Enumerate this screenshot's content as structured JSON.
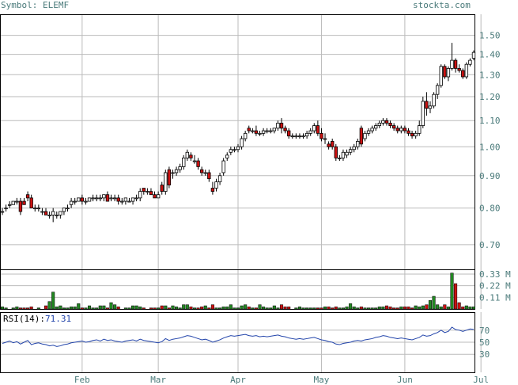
{
  "header": {
    "symbol_label": "Symbol: ELEMF",
    "site": "stockta.com"
  },
  "rsi": {
    "label_prefix": "RSI(14):",
    "value": "71.31",
    "levels": [
      70,
      50,
      30
    ]
  },
  "chart_data": {
    "type": "candlestick",
    "symbol": "ELEMF",
    "price_axis": {
      "scale": "log",
      "ticks": [
        0.7,
        0.8,
        0.9,
        1.0,
        1.1,
        1.2,
        1.3,
        1.4,
        1.5
      ],
      "range": [
        0.64,
        1.62
      ]
    },
    "volume_axis": {
      "ticks": [
        "0.11 M",
        "0.22 M",
        "0.33 M"
      ],
      "tick_values": [
        0.11,
        0.22,
        0.33
      ],
      "max": 0.36
    },
    "rsi_axis": {
      "ticks": [
        30,
        50,
        70
      ],
      "range": [
        0,
        100
      ]
    },
    "month_labels": [
      {
        "label": "Feb",
        "day": 22
      },
      {
        "label": "Mar",
        "day": 43
      },
      {
        "label": "Apr",
        "day": 65
      },
      {
        "label": "May",
        "day": 88
      },
      {
        "label": "Jun",
        "day": 111
      },
      {
        "label": "Jul",
        "day": 132
      }
    ],
    "colors": {
      "up_fill": "#ffffff",
      "down_fill": "#cc1111",
      "vol_up": "#228822",
      "vol_down": "#cc1111",
      "rsi_line": "#2244aa",
      "grid": "#bbbbbb"
    },
    "candles": [
      [
        0.79,
        0.8,
        0.78,
        0.79,
        0.02
      ],
      [
        0.8,
        0.81,
        0.79,
        0.8,
        0.01
      ],
      [
        0.81,
        0.82,
        0.8,
        0.81,
        0.0
      ],
      [
        0.81,
        0.82,
        0.81,
        0.82,
        0.01
      ],
      [
        0.82,
        0.83,
        0.81,
        0.82,
        0.02
      ],
      [
        0.82,
        0.83,
        0.78,
        0.79,
        0.01
      ],
      [
        0.82,
        0.83,
        0.81,
        0.81,
        0.01
      ],
      [
        0.84,
        0.85,
        0.82,
        0.83,
        0.01
      ],
      [
        0.83,
        0.84,
        0.8,
        0.8,
        0.02
      ],
      [
        0.8,
        0.81,
        0.79,
        0.8,
        0.0
      ],
      [
        0.8,
        0.81,
        0.79,
        0.8,
        0.01
      ],
      [
        0.79,
        0.8,
        0.78,
        0.79,
        0.0
      ],
      [
        0.79,
        0.8,
        0.78,
        0.78,
        0.03
      ],
      [
        0.78,
        0.79,
        0.77,
        0.78,
        0.07
      ],
      [
        0.78,
        0.8,
        0.76,
        0.79,
        0.16
      ],
      [
        0.78,
        0.79,
        0.77,
        0.78,
        0.02
      ],
      [
        0.78,
        0.79,
        0.77,
        0.79,
        0.03
      ],
      [
        0.79,
        0.8,
        0.78,
        0.8,
        0.01
      ],
      [
        0.8,
        0.81,
        0.79,
        0.8,
        0.01
      ],
      [
        0.81,
        0.83,
        0.8,
        0.82,
        0.02
      ],
      [
        0.82,
        0.83,
        0.81,
        0.82,
        0.02
      ],
      [
        0.82,
        0.83,
        0.82,
        0.83,
        0.05
      ],
      [
        0.83,
        0.84,
        0.81,
        0.82,
        0.01
      ],
      [
        0.82,
        0.83,
        0.81,
        0.82,
        0.01
      ],
      [
        0.82,
        0.83,
        0.82,
        0.83,
        0.03
      ],
      [
        0.83,
        0.84,
        0.82,
        0.83,
        0.01
      ],
      [
        0.83,
        0.84,
        0.82,
        0.83,
        0.01
      ],
      [
        0.83,
        0.84,
        0.82,
        0.83,
        0.03
      ],
      [
        0.83,
        0.84,
        0.82,
        0.84,
        0.03
      ],
      [
        0.84,
        0.85,
        0.82,
        0.82,
        0.01
      ],
      [
        0.83,
        0.84,
        0.82,
        0.83,
        0.06
      ],
      [
        0.83,
        0.84,
        0.82,
        0.83,
        0.04
      ],
      [
        0.83,
        0.84,
        0.81,
        0.82,
        0.02
      ],
      [
        0.82,
        0.83,
        0.81,
        0.82,
        0.0
      ],
      [
        0.82,
        0.83,
        0.81,
        0.83,
        0.01
      ],
      [
        0.82,
        0.83,
        0.82,
        0.82,
        0.01
      ],
      [
        0.82,
        0.83,
        0.81,
        0.83,
        0.03
      ],
      [
        0.83,
        0.84,
        0.82,
        0.83,
        0.03
      ],
      [
        0.83,
        0.86,
        0.82,
        0.85,
        0.02
      ],
      [
        0.86,
        0.86,
        0.84,
        0.85,
        0.01
      ],
      [
        0.85,
        0.86,
        0.84,
        0.85,
        0.0
      ],
      [
        0.85,
        0.86,
        0.84,
        0.84,
        0.01
      ],
      [
        0.84,
        0.85,
        0.83,
        0.83,
        0.01
      ],
      [
        0.83,
        0.85,
        0.83,
        0.84,
        0.01
      ],
      [
        0.87,
        0.88,
        0.84,
        0.85,
        0.03
      ],
      [
        0.85,
        0.92,
        0.84,
        0.91,
        0.03
      ],
      [
        0.92,
        0.93,
        0.86,
        0.87,
        0.01
      ],
      [
        0.91,
        0.92,
        0.89,
        0.91,
        0.03
      ],
      [
        0.91,
        0.93,
        0.9,
        0.92,
        0.02
      ],
      [
        0.92,
        0.94,
        0.91,
        0.93,
        0.01
      ],
      [
        0.93,
        0.97,
        0.92,
        0.96,
        0.04
      ],
      [
        0.96,
        0.99,
        0.95,
        0.98,
        0.04
      ],
      [
        0.97,
        0.98,
        0.95,
        0.96,
        0.02
      ],
      [
        0.95,
        0.97,
        0.94,
        0.95,
        0.01
      ],
      [
        0.95,
        0.96,
        0.92,
        0.93,
        0.01
      ],
      [
        0.92,
        0.93,
        0.9,
        0.91,
        0.02
      ],
      [
        0.91,
        0.92,
        0.9,
        0.91,
        0.03
      ],
      [
        0.91,
        0.92,
        0.88,
        0.89,
        0.01
      ],
      [
        0.86,
        0.88,
        0.84,
        0.85,
        0.04
      ],
      [
        0.86,
        0.89,
        0.85,
        0.88,
        0.01
      ],
      [
        0.88,
        0.91,
        0.87,
        0.9,
        0.01
      ],
      [
        0.91,
        0.96,
        0.9,
        0.95,
        0.02
      ],
      [
        0.96,
        0.98,
        0.95,
        0.97,
        0.02
      ],
      [
        0.98,
        1.0,
        0.97,
        0.99,
        0.04
      ],
      [
        0.99,
        1.0,
        0.98,
        0.99,
        0.01
      ],
      [
        0.99,
        1.01,
        0.98,
        1.0,
        0.01
      ],
      [
        1.0,
        1.04,
        0.99,
        1.03,
        0.03
      ],
      [
        1.03,
        1.06,
        1.02,
        1.05,
        0.04
      ],
      [
        1.07,
        1.08,
        1.05,
        1.06,
        0.02
      ],
      [
        1.06,
        1.07,
        1.05,
        1.06,
        0.01
      ],
      [
        1.06,
        1.08,
        1.04,
        1.05,
        0.01
      ],
      [
        1.05,
        1.06,
        1.04,
        1.05,
        0.04
      ],
      [
        1.05,
        1.07,
        1.04,
        1.06,
        0.02
      ],
      [
        1.06,
        1.07,
        1.05,
        1.06,
        0.01
      ],
      [
        1.06,
        1.07,
        1.05,
        1.06,
        0.01
      ],
      [
        1.06,
        1.07,
        1.05,
        1.07,
        0.03
      ],
      [
        1.07,
        1.1,
        1.06,
        1.09,
        0.01
      ],
      [
        1.09,
        1.11,
        1.05,
        1.07,
        0.04
      ],
      [
        1.07,
        1.08,
        1.05,
        1.06,
        0.02
      ],
      [
        1.06,
        1.07,
        1.03,
        1.04,
        0.02
      ],
      [
        1.04,
        1.05,
        1.03,
        1.04,
        0.0
      ],
      [
        1.04,
        1.05,
        1.03,
        1.04,
        0.01
      ],
      [
        1.04,
        1.05,
        1.03,
        1.04,
        0.02
      ],
      [
        1.04,
        1.05,
        1.03,
        1.04,
        0.01
      ],
      [
        1.04,
        1.06,
        1.03,
        1.05,
        0.01
      ],
      [
        1.05,
        1.07,
        1.04,
        1.06,
        0.01
      ],
      [
        1.06,
        1.09,
        1.05,
        1.08,
        0.01
      ],
      [
        1.08,
        1.1,
        1.04,
        1.05,
        0.01
      ],
      [
        1.05,
        1.07,
        1.02,
        1.03,
        0.01
      ],
      [
        1.03,
        1.05,
        1.01,
        1.03,
        0.02
      ],
      [
        1.01,
        1.02,
        0.99,
        1.0,
        0.02
      ],
      [
        1.02,
        1.03,
        0.99,
        1.0,
        0.01
      ],
      [
        1.0,
        1.01,
        0.95,
        0.96,
        0.02
      ],
      [
        0.96,
        0.97,
        0.95,
        0.96,
        0.01
      ],
      [
        0.96,
        0.99,
        0.95,
        0.98,
        0.01
      ],
      [
        0.97,
        0.99,
        0.96,
        0.98,
        0.02
      ],
      [
        0.98,
        1.0,
        0.97,
        0.99,
        0.05
      ],
      [
        0.99,
        1.01,
        0.98,
        1.0,
        0.02
      ],
      [
        1.0,
        1.03,
        0.99,
        1.02,
        0.01
      ],
      [
        1.07,
        1.08,
        1.0,
        1.01,
        0.02
      ],
      [
        1.03,
        1.06,
        1.02,
        1.05,
        0.01
      ],
      [
        1.05,
        1.07,
        1.04,
        1.06,
        0.01
      ],
      [
        1.06,
        1.08,
        1.05,
        1.07,
        0.01
      ],
      [
        1.07,
        1.09,
        1.06,
        1.08,
        0.01
      ],
      [
        1.08,
        1.1,
        1.07,
        1.09,
        0.02
      ],
      [
        1.09,
        1.11,
        1.08,
        1.1,
        0.02
      ],
      [
        1.1,
        1.11,
        1.08,
        1.09,
        0.03
      ],
      [
        1.09,
        1.1,
        1.07,
        1.08,
        0.02
      ],
      [
        1.08,
        1.09,
        1.06,
        1.07,
        0.01
      ],
      [
        1.07,
        1.08,
        1.05,
        1.06,
        0.01
      ],
      [
        1.06,
        1.08,
        1.05,
        1.07,
        0.02
      ],
      [
        1.07,
        1.08,
        1.05,
        1.06,
        0.02
      ],
      [
        1.06,
        1.07,
        1.04,
        1.05,
        0.02
      ],
      [
        1.05,
        1.06,
        1.03,
        1.04,
        0.01
      ],
      [
        1.04,
        1.06,
        1.03,
        1.05,
        0.03
      ],
      [
        1.05,
        1.1,
        1.04,
        1.08,
        0.02
      ],
      [
        1.08,
        1.2,
        1.07,
        1.18,
        0.03
      ],
      [
        1.18,
        1.22,
        1.12,
        1.15,
        0.04
      ],
      [
        1.15,
        1.18,
        1.13,
        1.16,
        0.08
      ],
      [
        1.16,
        1.22,
        1.15,
        1.21,
        0.12
      ],
      [
        1.21,
        1.26,
        1.19,
        1.25,
        0.04
      ],
      [
        1.25,
        1.35,
        1.24,
        1.34,
        0.02
      ],
      [
        1.34,
        1.35,
        1.28,
        1.29,
        0.04
      ],
      [
        1.29,
        1.34,
        1.27,
        1.33,
        0.02
      ],
      [
        1.33,
        1.46,
        1.32,
        1.37,
        0.34
      ],
      [
        1.37,
        1.38,
        1.31,
        1.33,
        0.24
      ],
      [
        1.33,
        1.35,
        1.31,
        1.32,
        0.06
      ],
      [
        1.32,
        1.33,
        1.28,
        1.29,
        0.02
      ],
      [
        1.29,
        1.36,
        1.28,
        1.35,
        0.03
      ],
      [
        1.35,
        1.38,
        1.34,
        1.37,
        0.02
      ],
      [
        1.38,
        1.42,
        1.37,
        1.41,
        0.02
      ]
    ],
    "rsi_values": [
      48,
      50,
      52,
      49,
      51,
      47,
      50,
      53,
      46,
      48,
      49,
      47,
      46,
      44,
      45,
      43,
      44,
      46,
      47,
      49,
      50,
      51,
      52,
      50,
      51,
      53,
      54,
      52,
      55,
      53,
      54,
      52,
      51,
      50,
      52,
      53,
      54,
      52,
      55,
      53,
      52,
      51,
      50,
      49,
      51,
      56,
      53,
      55,
      56,
      57,
      59,
      61,
      60,
      58,
      56,
      54,
      55,
      53,
      50,
      52,
      54,
      57,
      59,
      61,
      60,
      61,
      62,
      63,
      61,
      60,
      61,
      59,
      60,
      59,
      60,
      61,
      62,
      60,
      59,
      57,
      56,
      55,
      56,
      55,
      56,
      57,
      58,
      56,
      54,
      53,
      51,
      50,
      47,
      46,
      48,
      49,
      50,
      52,
      53,
      52,
      54,
      55,
      56,
      58,
      59,
      61,
      60,
      58,
      57,
      56,
      57,
      56,
      55,
      54,
      56,
      58,
      62,
      60,
      61,
      64,
      66,
      70,
      66,
      68,
      75,
      71,
      70,
      68,
      70,
      72,
      71.31
    ]
  }
}
